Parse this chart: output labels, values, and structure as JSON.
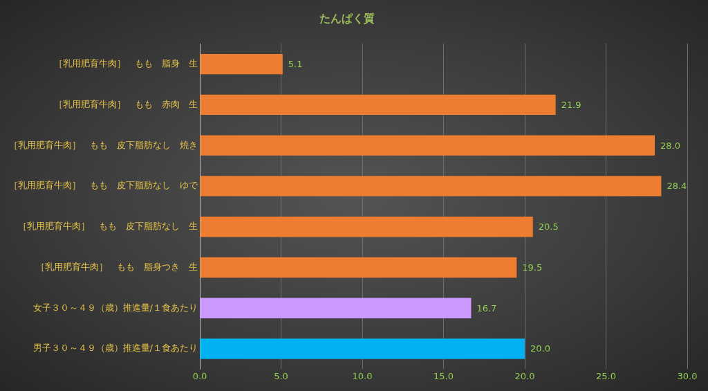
{
  "chart_data": {
    "type": "bar",
    "orientation": "horizontal",
    "title": "たんぱく質",
    "categories": [
      "［乳用肥育牛肉］　もも　脂身　生",
      "［乳用肥育牛肉］　もも　赤肉　生",
      "［乳用肥育牛肉］　もも　皮下脂肪なし　焼き",
      "［乳用肥育牛肉］　もも　皮下脂肪なし　ゆで",
      "［乳用肥育牛肉］　もも　皮下脂肪なし　生",
      "［乳用肥育牛肉］　もも　脂身つき　生",
      "女子３０～４９（歳）推進量/１食あたり",
      "男子３０～４９（歳）推進量/１食あたり"
    ],
    "values": [
      5.1,
      21.9,
      28.0,
      28.4,
      20.5,
      19.5,
      16.7,
      20.0
    ],
    "value_labels": [
      "5.1",
      "21.9",
      "28.0",
      "28.4",
      "20.5",
      "19.5",
      "16.7",
      "20.0"
    ],
    "colors": [
      "#ed7d31",
      "#ed7d31",
      "#ed7d31",
      "#ed7d31",
      "#ed7d31",
      "#ed7d31",
      "#cc99ff",
      "#00b0f0"
    ],
    "xlim": [
      0,
      30
    ],
    "xticks": [
      {
        "value": 0,
        "label": "0.0"
      },
      {
        "value": 5,
        "label": "5.0"
      },
      {
        "value": 10,
        "label": "10.0"
      },
      {
        "value": 15,
        "label": "15.0"
      },
      {
        "value": 20,
        "label": "20.0"
      },
      {
        "value": 25,
        "label": "25.0"
      },
      {
        "value": 30,
        "label": "30.0"
      }
    ],
    "grid": "x",
    "legend": false
  }
}
